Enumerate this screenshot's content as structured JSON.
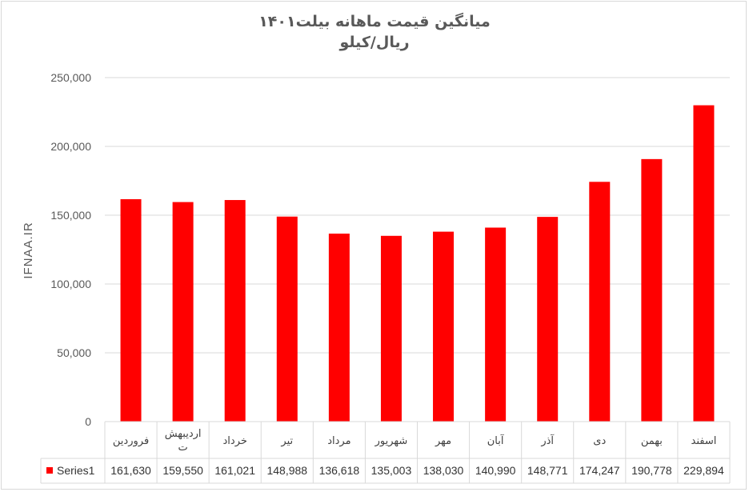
{
  "chart_data": {
    "type": "bar",
    "title": "میانگین قیمت ماهانه بیلت۱۴۰۱",
    "subtitle": "ریال/کیلو",
    "ylabel": "IFNAA.IR",
    "xlabel": "",
    "ylim": [
      0,
      250000
    ],
    "yticks": [
      0,
      50000,
      100000,
      150000,
      200000,
      250000
    ],
    "ytick_labels": [
      "0",
      "50,000",
      "100,000",
      "150,000",
      "200,000",
      "250,000"
    ],
    "grid": true,
    "legend": "bottom-left data table",
    "categories": [
      "فروردین",
      "اردیبهشت",
      "خرداد",
      "تیر",
      "مرداد",
      "شهریور",
      "مهر",
      "آبان",
      "آذر",
      "دی",
      "بهمن",
      "اسفند"
    ],
    "series": [
      {
        "name": "Series1",
        "color": "#ff0000",
        "values": [
          161630,
          159550,
          161021,
          148988,
          136618,
          135003,
          138030,
          140990,
          148771,
          174247,
          190778,
          229894
        ],
        "value_labels": [
          "161,630",
          "159,550",
          "161,021",
          "148,988",
          "136,618",
          "135,003",
          "138,030",
          "140,990",
          "148,771",
          "174,247",
          "190,778",
          "229,894"
        ]
      }
    ]
  }
}
